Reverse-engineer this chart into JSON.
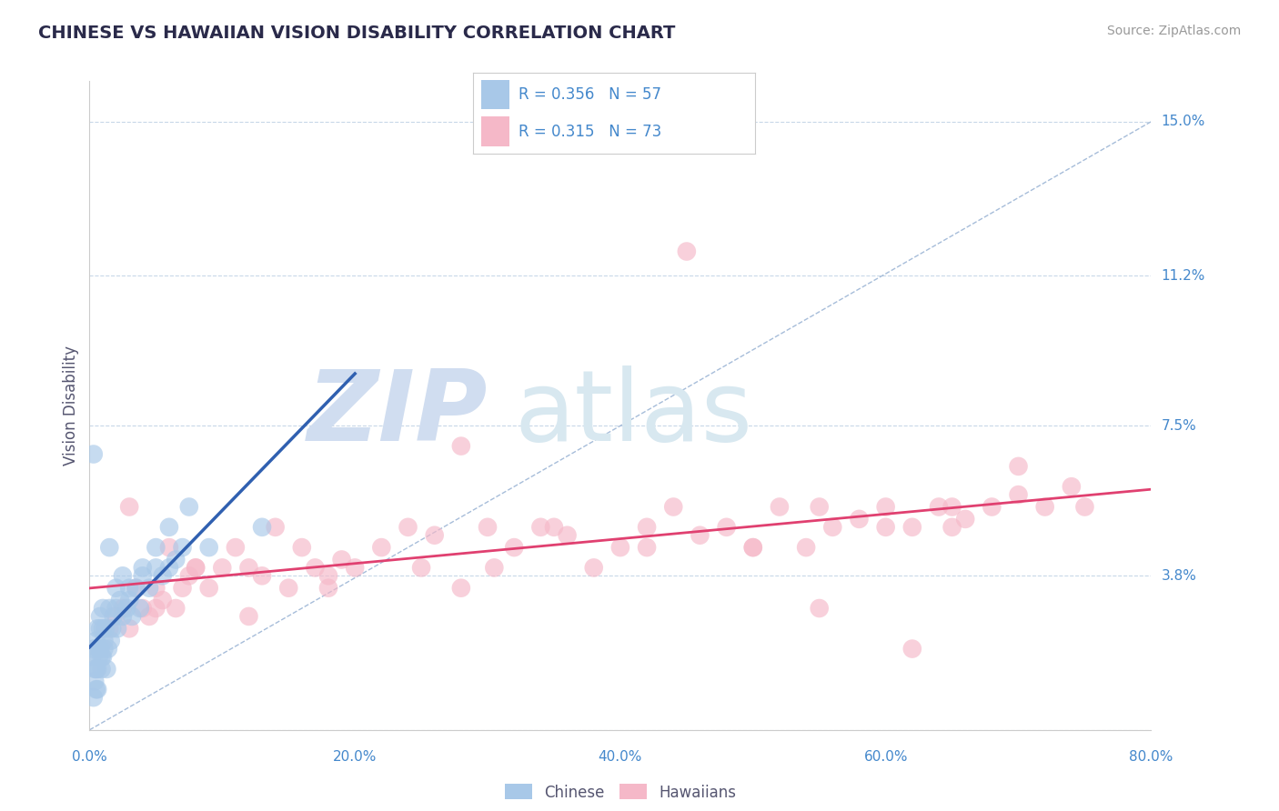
{
  "title": "CHINESE VS HAWAIIAN VISION DISABILITY CORRELATION CHART",
  "source_text": "Source: ZipAtlas.com",
  "ylabel": "Vision Disability",
  "y_ticks": [
    0.0,
    3.8,
    7.5,
    11.2,
    15.0
  ],
  "y_tick_labels": [
    "",
    "3.8%",
    "7.5%",
    "11.2%",
    "15.0%"
  ],
  "x_ticks": [
    0.0,
    10.0,
    20.0,
    30.0,
    40.0,
    50.0,
    60.0,
    70.0,
    80.0
  ],
  "x_tick_labels": [
    "0.0%",
    "",
    "20.0%",
    "",
    "40.0%",
    "",
    "60.0%",
    "",
    "80.0%"
  ],
  "xlim": [
    0.0,
    80.0
  ],
  "ylim": [
    0.0,
    16.0
  ],
  "chinese_R": 0.356,
  "chinese_N": 57,
  "hawaiian_R": 0.315,
  "hawaiian_N": 73,
  "chinese_color": "#a8c8e8",
  "hawaiian_color": "#f5b8c8",
  "chinese_line_color": "#3060b0",
  "hawaiian_line_color": "#e04070",
  "ref_line_color": "#90acd0",
  "grid_color": "#c8d8e8",
  "title_color": "#2a2a4a",
  "axis_label_color": "#555570",
  "tick_color": "#4488cc",
  "watermark_zip_color": "#d0ddf0",
  "watermark_atlas_color": "#d8e8f0",
  "legend_border_color": "#cccccc",
  "background_color": "#ffffff",
  "chinese_x": [
    0.2,
    0.3,
    0.4,
    0.5,
    0.5,
    0.6,
    0.6,
    0.7,
    0.8,
    0.8,
    0.9,
    1.0,
    1.0,
    1.1,
    1.2,
    1.3,
    1.4,
    1.5,
    1.6,
    1.7,
    1.8,
    2.0,
    2.1,
    2.3,
    2.5,
    2.8,
    3.0,
    3.2,
    3.5,
    3.8,
    4.0,
    4.5,
    5.0,
    5.5,
    6.0,
    6.5,
    7.0,
    0.3,
    0.4,
    0.5,
    0.6,
    0.7,
    0.8,
    0.9,
    1.0,
    1.1,
    1.5,
    2.0,
    2.5,
    3.0,
    4.0,
    5.0,
    6.0,
    7.5,
    9.0,
    13.0,
    0.3
  ],
  "chinese_y": [
    1.8,
    2.0,
    1.5,
    2.2,
    1.0,
    1.5,
    2.5,
    1.8,
    2.0,
    2.8,
    1.5,
    2.5,
    1.8,
    2.0,
    2.5,
    1.5,
    2.0,
    3.0,
    2.2,
    2.5,
    2.8,
    3.0,
    2.5,
    3.2,
    2.8,
    3.0,
    3.5,
    2.8,
    3.5,
    3.0,
    3.8,
    3.5,
    4.0,
    3.8,
    4.0,
    4.2,
    4.5,
    0.8,
    1.2,
    1.5,
    1.0,
    2.0,
    2.5,
    1.8,
    3.0,
    2.2,
    4.5,
    3.5,
    3.8,
    3.2,
    4.0,
    4.5,
    5.0,
    5.5,
    4.5,
    5.0,
    6.8
  ],
  "hawaiian_x": [
    1.5,
    2.0,
    2.5,
    3.0,
    3.5,
    4.0,
    4.5,
    5.0,
    5.5,
    6.0,
    6.5,
    7.0,
    7.5,
    8.0,
    9.0,
    10.0,
    11.0,
    12.0,
    13.0,
    14.0,
    15.0,
    16.0,
    17.0,
    18.0,
    19.0,
    20.0,
    22.0,
    24.0,
    26.0,
    28.0,
    30.0,
    30.5,
    32.0,
    34.0,
    36.0,
    38.0,
    40.0,
    42.0,
    44.0,
    46.0,
    48.0,
    50.0,
    52.0,
    54.0,
    56.0,
    58.0,
    60.0,
    62.0,
    64.0,
    65.0,
    66.0,
    68.0,
    70.0,
    72.0,
    74.0,
    3.0,
    5.0,
    8.0,
    12.0,
    18.0,
    25.0,
    35.0,
    42.0,
    50.0,
    55.0,
    60.0,
    65.0,
    70.0,
    75.0,
    28.0,
    45.0,
    55.0,
    62.0
  ],
  "hawaiian_y": [
    2.5,
    2.8,
    3.0,
    2.5,
    3.5,
    3.0,
    2.8,
    3.5,
    3.2,
    4.5,
    3.0,
    3.5,
    3.8,
    4.0,
    3.5,
    4.0,
    4.5,
    4.0,
    3.8,
    5.0,
    3.5,
    4.5,
    4.0,
    3.8,
    4.2,
    4.0,
    4.5,
    5.0,
    4.8,
    3.5,
    5.0,
    4.0,
    4.5,
    5.0,
    4.8,
    4.0,
    4.5,
    5.0,
    5.5,
    4.8,
    5.0,
    4.5,
    5.5,
    4.5,
    5.0,
    5.2,
    5.5,
    5.0,
    5.5,
    5.0,
    5.2,
    5.5,
    5.8,
    5.5,
    6.0,
    5.5,
    3.0,
    4.0,
    2.8,
    3.5,
    4.0,
    5.0,
    4.5,
    4.5,
    5.5,
    5.0,
    5.5,
    6.5,
    5.5,
    7.0,
    11.8,
    3.0,
    2.0
  ]
}
